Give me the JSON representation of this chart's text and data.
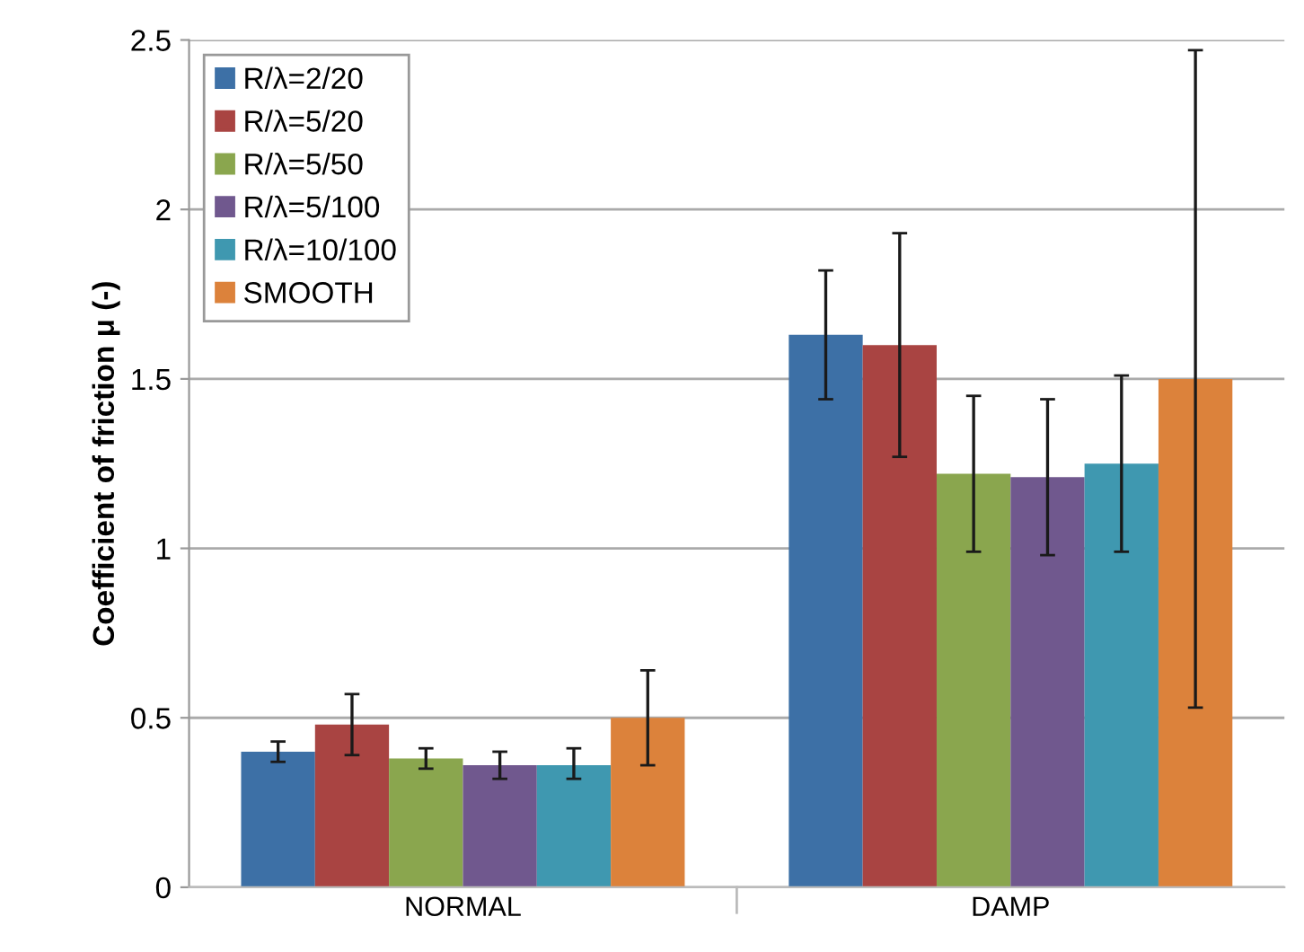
{
  "chart_data": {
    "type": "bar",
    "ylabel": "Coefficient of friction μ (-)",
    "categories": [
      "NORMAL",
      "DAMP"
    ],
    "series": [
      {
        "name": "R/λ=2/20",
        "color": "#3d70a6",
        "values": [
          0.4,
          1.63
        ],
        "errors": [
          [
            0.37,
            0.43
          ],
          [
            1.44,
            1.82
          ]
        ]
      },
      {
        "name": "R/λ=5/20",
        "color": "#a94442",
        "values": [
          0.48,
          1.6
        ],
        "errors": [
          [
            0.39,
            0.57
          ],
          [
            1.27,
            1.93
          ]
        ]
      },
      {
        "name": "R/λ=5/50",
        "color": "#8aa64e",
        "values": [
          0.38,
          1.22
        ],
        "errors": [
          [
            0.35,
            0.41
          ],
          [
            0.99,
            1.45
          ]
        ]
      },
      {
        "name": "R/λ=5/100",
        "color": "#70588e",
        "values": [
          0.36,
          1.21
        ],
        "errors": [
          [
            0.32,
            0.4
          ],
          [
            0.98,
            1.44
          ]
        ]
      },
      {
        "name": "R/λ=10/100",
        "color": "#3f98b0",
        "values": [
          0.36,
          1.25
        ],
        "errors": [
          [
            0.32,
            0.41
          ],
          [
            0.99,
            1.51
          ]
        ]
      },
      {
        "name": "SMOOTH",
        "color": "#dc823b",
        "values": [
          0.5,
          1.5
        ],
        "errors": [
          [
            0.36,
            0.64
          ],
          [
            0.53,
            2.47
          ]
        ]
      }
    ],
    "ylim": [
      0,
      2.5
    ],
    "yticks": [
      0,
      0.5,
      1,
      1.5,
      2,
      2.5
    ],
    "grid": "y",
    "legend": "top left"
  }
}
